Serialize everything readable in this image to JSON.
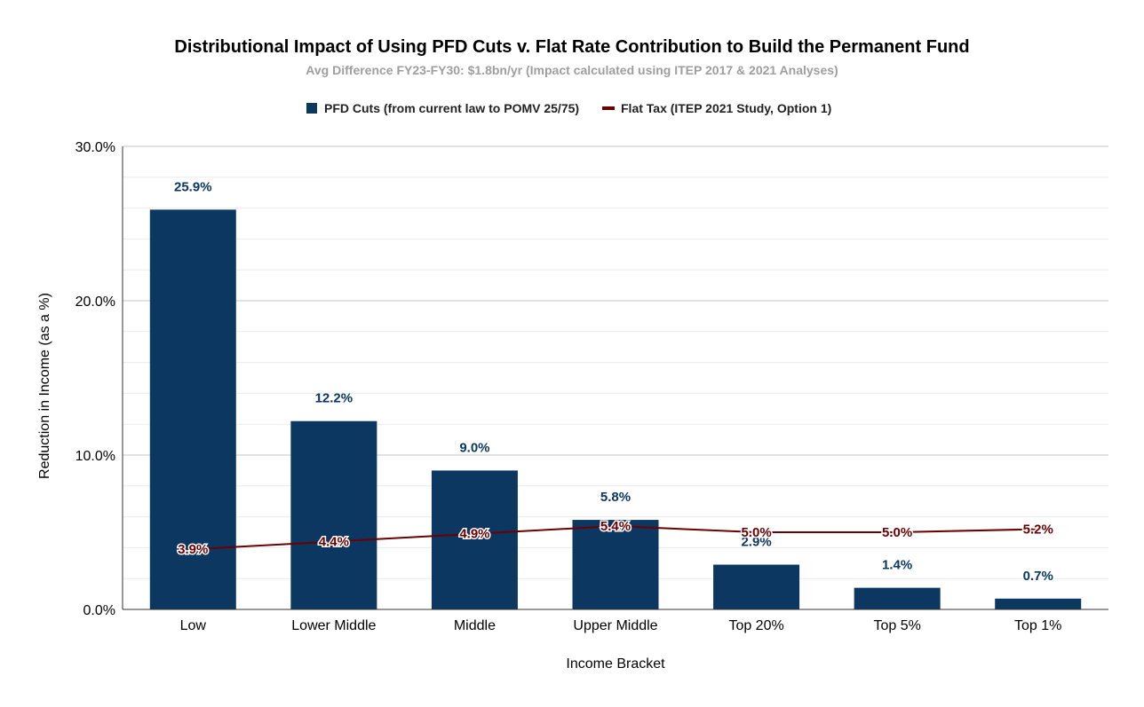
{
  "chart_data": {
    "type": "bar",
    "title": "Distributional Impact of Using PFD Cuts v. Flat Rate Contribution to Build the Permanent Fund",
    "subtitle": "Avg Difference FY23-FY30: $1.8bn/yr (Impact calculated using ITEP 2017 & 2021 Analyses)",
    "xlabel": "Income Bracket",
    "ylabel": "Reduction in Income (as a %)",
    "ylim": [
      0,
      30
    ],
    "y_ticks": [
      "0.0%",
      "10.0%",
      "20.0%",
      "30.0%"
    ],
    "y_tick_values": [
      0,
      10,
      20,
      30
    ],
    "minor_gridlines_per_major": 5,
    "grid": true,
    "legend_position": "top-center",
    "categories": [
      "Low",
      "Lower Middle",
      "Middle",
      "Upper Middle",
      "Top 20%",
      "Top 5%",
      "Top 1%"
    ],
    "series": [
      {
        "name": "PFD Cuts (from current law to POMV 25/75)",
        "type": "bar",
        "color": "#0b3761",
        "values": [
          25.9,
          12.2,
          9.0,
          5.8,
          2.9,
          1.4,
          0.7
        ],
        "labels": [
          "25.9%",
          "12.2%",
          "9.0%",
          "5.8%",
          "2.9%",
          "1.4%",
          "0.7%"
        ]
      },
      {
        "name": "Flat Tax (ITEP 2021 Study, Option 1)",
        "type": "line",
        "color": "#6b0000",
        "values": [
          3.9,
          4.4,
          4.9,
          5.4,
          5.0,
          5.0,
          5.2
        ],
        "labels": [
          "3.9%",
          "4.4%",
          "4.9%",
          "5.4%",
          "5.0%",
          "5.0%",
          "5.2%"
        ]
      }
    ]
  }
}
